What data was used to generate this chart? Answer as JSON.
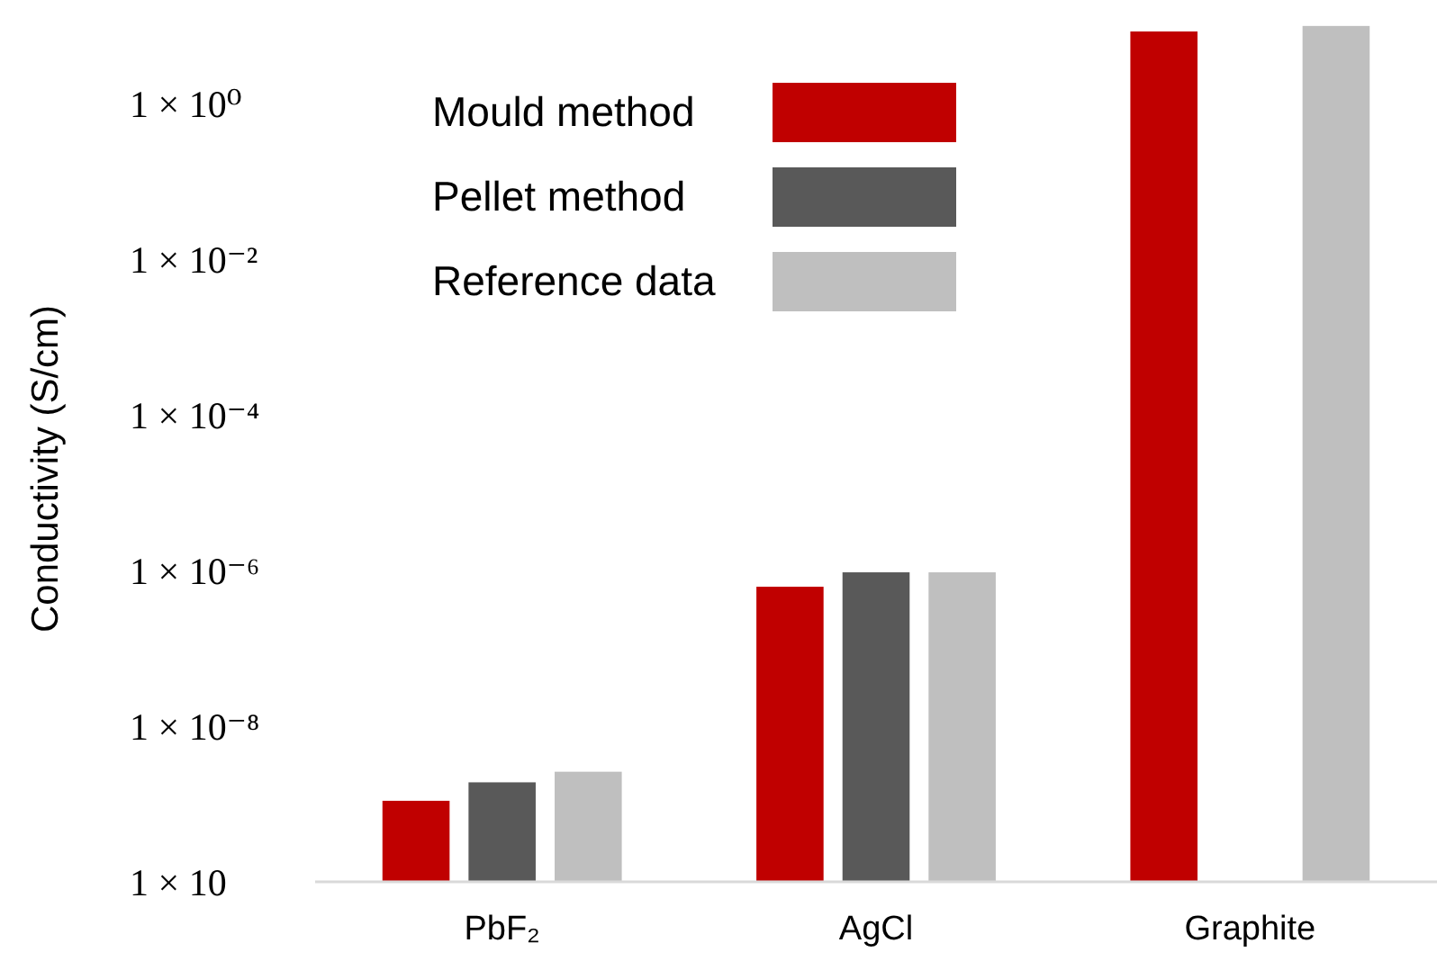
{
  "chart_data": {
    "type": "bar",
    "ylabel": "Conductivity (S/cm)",
    "categories": [
      "PbF₂",
      "AgCl",
      "Graphite"
    ],
    "series": [
      {
        "name": "Mould method",
        "color": "#c00000",
        "values": [
          1.1e-09,
          6.2e-07,
          8.5
        ]
      },
      {
        "name": "Pellet method",
        "color": "#595959",
        "values": [
          1.9e-09,
          9.5e-07,
          null
        ]
      },
      {
        "name": "Reference data",
        "color": "#bfbfbf",
        "values": [
          2.6e-09,
          9.5e-07,
          10
        ]
      }
    ],
    "log": true,
    "ylim": [
      1e-10,
      12
    ],
    "yticks": [
      {
        "value": 1e-10,
        "label": "1 × 10"
      },
      {
        "value": 1e-08,
        "label": "1 × 10⁻⁸"
      },
      {
        "value": 1e-06,
        "label": "1 × 10⁻⁶"
      },
      {
        "value": 0.0001,
        "label": "1 × 10⁻⁴"
      },
      {
        "value": 0.01,
        "label": "1 × 10⁻²"
      },
      {
        "value": 1,
        "label": "1 × 10⁰"
      }
    ],
    "grid": false,
    "legend": "top left"
  }
}
